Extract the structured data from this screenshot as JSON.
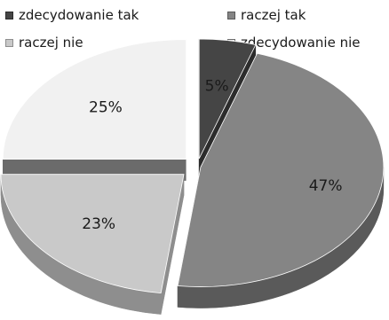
{
  "chart_data": {
    "type": "pie",
    "style": "3d-exploded",
    "title": "",
    "legend_position": "top",
    "categories": [
      "zdecydowanie tak",
      "raczej tak",
      "raczej nie",
      "zdecydowanie nie"
    ],
    "values": [
      5,
      47,
      23,
      25
    ],
    "labels": [
      "5%",
      "47%",
      "23%",
      "25%"
    ],
    "colors": [
      "#454545",
      "#858585",
      "#c9c9c9",
      "#f1f1f1"
    ],
    "side_colors": [
      "#2c2c2c",
      "#5a5a5a",
      "#8e8e8e",
      "#6b6b6b"
    ]
  }
}
